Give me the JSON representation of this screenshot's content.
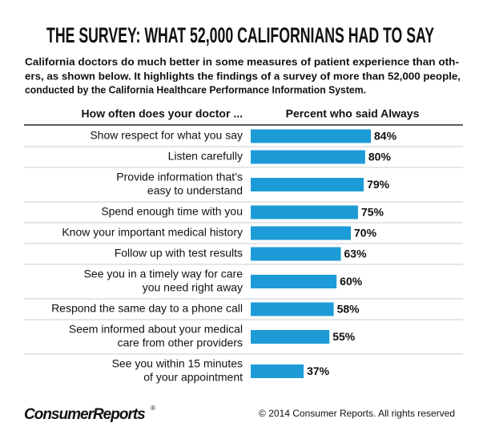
{
  "chart_data": {
    "type": "hbar",
    "title": "THE SURVEY: WHAT 52,000 CALIFORNIANS HAD TO SAY",
    "subtitle": [
      "California doctors do much better in some measures of patient experience than oth-",
      "ers, as shown below. It highlights the findings of a survey of more than 52,000 people,",
      "conducted by the California Healthcare Performance Information System."
    ],
    "category_header": "How often does your doctor ...",
    "value_header": "Percent who said Always",
    "categories": [
      [
        "Show respect for what you say"
      ],
      [
        "Listen carefully"
      ],
      [
        "Provide information that’s",
        "easy to understand"
      ],
      [
        "Spend enough time with you"
      ],
      [
        "Know your important medical history"
      ],
      [
        "Follow up with test results"
      ],
      [
        "See you in a timely way for care",
        "you need right away"
      ],
      [
        "Respond the same day to a phone call"
      ],
      [
        "Seem informed about your medical",
        "care from other providers"
      ],
      [
        "See you within 15 minutes",
        "of your appointment"
      ]
    ],
    "values": [
      84,
      80,
      79,
      75,
      70,
      63,
      60,
      58,
      55,
      37
    ],
    "value_labels": [
      "84%",
      "80%",
      "79%",
      "75%",
      "70%",
      "63%",
      "60%",
      "58%",
      "55%",
      "37%"
    ],
    "color": "#1d9bd7",
    "logo": "ConsumerReports",
    "logo_mark": "®",
    "copyright": "© 2014 Consumer Reports. All rights reserved"
  }
}
